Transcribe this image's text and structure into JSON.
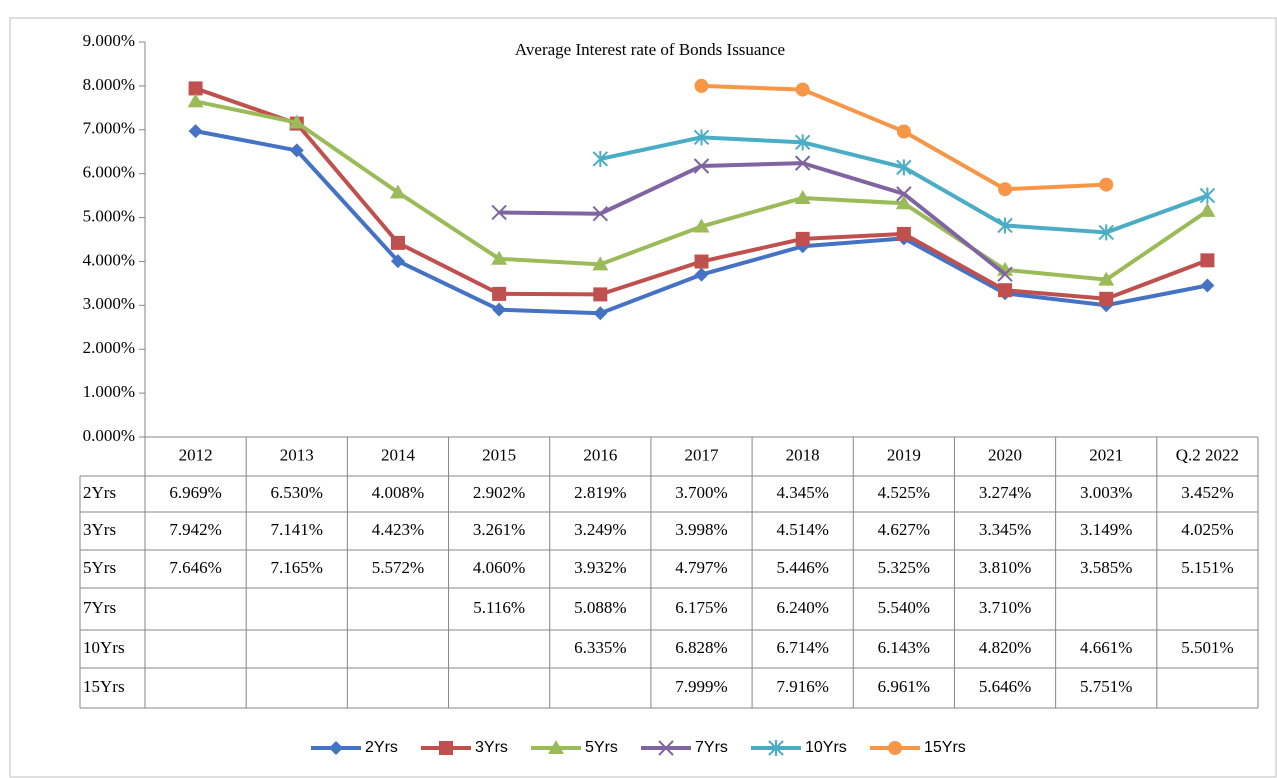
{
  "chart_data": {
    "type": "line",
    "title": "Average Interest rate of Bonds Issuance",
    "categories": [
      "2012",
      "2013",
      "2014",
      "2015",
      "2016",
      "2017",
      "2018",
      "2019",
      "2020",
      "2021",
      "Q.2 2022"
    ],
    "ylim": [
      0,
      9
    ],
    "yticks": [
      {
        "value": 0,
        "label": "0.000%"
      },
      {
        "value": 1,
        "label": "1.000%"
      },
      {
        "value": 2,
        "label": "2.000%"
      },
      {
        "value": 3,
        "label": "3.000%"
      },
      {
        "value": 4,
        "label": "4.000%"
      },
      {
        "value": 5,
        "label": "5.000%"
      },
      {
        "value": 6,
        "label": "6.000%"
      },
      {
        "value": 7,
        "label": "7.000%"
      },
      {
        "value": 8,
        "label": "8.000%"
      },
      {
        "value": 9,
        "label": "9.000%"
      }
    ],
    "legend": "bottom",
    "series": [
      {
        "name": "2Yrs",
        "color": "#4472c4",
        "marker": "diamond",
        "values": [
          6.969,
          6.53,
          4.008,
          2.902,
          2.819,
          3.7,
          4.345,
          4.525,
          3.274,
          3.003,
          3.452
        ],
        "value_labels": [
          "6.969%",
          "6.530%",
          "4.008%",
          "2.902%",
          "2.819%",
          "3.700%",
          "4.345%",
          "4.525%",
          "3.274%",
          "3.003%",
          "3.452%"
        ]
      },
      {
        "name": "3Yrs",
        "color": "#c0504d",
        "marker": "square",
        "values": [
          7.942,
          7.141,
          4.423,
          3.261,
          3.249,
          3.998,
          4.514,
          4.627,
          3.345,
          3.149,
          4.025
        ],
        "value_labels": [
          "7.942%",
          "7.141%",
          "4.423%",
          "3.261%",
          "3.249%",
          "3.998%",
          "4.514%",
          "4.627%",
          "3.345%",
          "3.149%",
          "4.025%"
        ]
      },
      {
        "name": "5Yrs",
        "color": "#9bbb59",
        "marker": "triangle",
        "values": [
          7.646,
          7.165,
          5.572,
          4.06,
          3.932,
          4.797,
          5.446,
          5.325,
          3.81,
          3.585,
          5.151
        ],
        "value_labels": [
          "7.646%",
          "7.165%",
          "5.572%",
          "4.060%",
          "3.932%",
          "4.797%",
          "5.446%",
          "5.325%",
          "3.810%",
          "3.585%",
          "5.151%"
        ]
      },
      {
        "name": "7Yrs",
        "color": "#8064a2",
        "marker": "x",
        "values": [
          null,
          null,
          null,
          5.116,
          5.088,
          6.175,
          6.24,
          5.54,
          3.71,
          null,
          null
        ],
        "value_labels": [
          null,
          null,
          null,
          "5.116%",
          "5.088%",
          "6.175%",
          "6.240%",
          "5.540%",
          "3.710%",
          null,
          null
        ]
      },
      {
        "name": "10Yrs",
        "color": "#4bacc6",
        "marker": "star",
        "values": [
          null,
          null,
          null,
          null,
          6.335,
          6.828,
          6.714,
          6.143,
          4.82,
          4.661,
          5.501
        ],
        "value_labels": [
          null,
          null,
          null,
          null,
          "6.335%",
          "6.828%",
          "6.714%",
          "6.143%",
          "4.820%",
          "4.661%",
          "5.501%"
        ]
      },
      {
        "name": "15Yrs",
        "color": "#f79646",
        "marker": "circle",
        "values": [
          null,
          null,
          null,
          null,
          null,
          7.999,
          7.916,
          6.961,
          5.646,
          5.751,
          null
        ],
        "value_labels": [
          null,
          null,
          null,
          null,
          null,
          "7.999%",
          "7.916%",
          "6.961%",
          "5.646%",
          "5.751%",
          null
        ]
      }
    ]
  }
}
